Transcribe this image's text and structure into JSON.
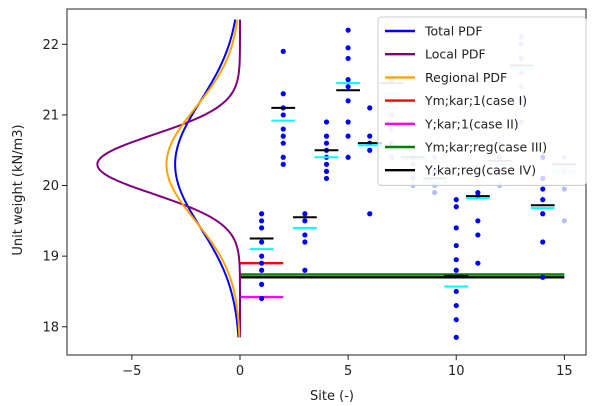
{
  "chart_data": {
    "type": "scatter",
    "xlabel": "Site (-)",
    "ylabel": "Unit weight (kN/m3)",
    "xlim": [
      -8,
      16
    ],
    "ylim": [
      17.6,
      22.5
    ],
    "xticks": [
      -5,
      0,
      5,
      10,
      15
    ],
    "yticks": [
      18,
      19,
      20,
      21,
      22
    ],
    "legend_position": "top-right",
    "colors": {
      "points": "#0000ff",
      "points_faded": "#b8bef5",
      "site_mean": "#000000",
      "site_char": "#00ffff",
      "total_pdf": "#0000ff",
      "local_pdf": "#800080",
      "regional_pdf": "#ffa500",
      "case1": "#ff0000",
      "case2": "#ff00ff",
      "case3": "#008000",
      "case4": "#000000"
    },
    "curves": [
      {
        "name": "Total PDF",
        "color": "#0000ff",
        "width": 2,
        "mean": 20.3,
        "sd": 0.9,
        "peak_x": -3.0
      },
      {
        "name": "Local PDF",
        "color": "#800080",
        "width": 2,
        "mean": 20.3,
        "sd": 0.42,
        "peak_x": -6.6
      },
      {
        "name": "Regional PDF",
        "color": "#ffa500",
        "width": 2,
        "mean": 20.3,
        "sd": 0.8,
        "peak_x": -3.4
      }
    ],
    "curve_y_range": [
      17.85,
      22.35
    ],
    "case_lines": [
      {
        "name": "Ym;kar;1(case I)",
        "color": "#ff0000",
        "y": 18.9,
        "x": [
          0,
          2
        ]
      },
      {
        "name": "Y;kar;1(case II)",
        "color": "#ff00ff",
        "y": 18.42,
        "x": [
          0,
          2
        ]
      },
      {
        "name": "Ym;kar;reg(case III)",
        "color": "#008000",
        "y": 18.74,
        "x": [
          0,
          15
        ]
      },
      {
        "name": "Y;kar;reg(case IV)",
        "color": "#000000",
        "y": 18.7,
        "x": [
          0,
          15
        ]
      }
    ],
    "sites": [
      {
        "x": 1,
        "points": [
          18.4,
          18.6,
          18.8,
          18.9,
          19.0,
          19.2,
          19.4,
          19.5,
          19.6
        ],
        "mean": 19.25,
        "char": 19.1,
        "faded": false
      },
      {
        "x": 2,
        "points": [
          20.3,
          20.4,
          20.6,
          20.7,
          20.8,
          21.0,
          21.1,
          21.3,
          21.9
        ],
        "mean": 21.1,
        "char": 20.92,
        "faded": false
      },
      {
        "x": 3,
        "points": [
          18.8,
          19.2,
          19.3,
          19.5,
          19.6
        ],
        "mean": 19.55,
        "char": 19.4,
        "faded": false
      },
      {
        "x": 4,
        "points": [
          20.1,
          20.2,
          20.3,
          20.4,
          20.5,
          20.6,
          20.7,
          20.9
        ],
        "mean": 20.5,
        "char": 20.4,
        "faded": false
      },
      {
        "x": 5,
        "points": [
          20.4,
          20.7,
          20.9,
          21.2,
          21.4,
          21.5,
          21.8,
          21.95,
          22.2
        ],
        "mean": 21.35,
        "char": 21.45,
        "faded": false
      },
      {
        "x": 6,
        "points": [
          19.6,
          20.5,
          20.6,
          20.7,
          21.1
        ],
        "mean": 20.6,
        "char": 20.57,
        "faded": false
      },
      {
        "x": 7,
        "points": [
          20.4,
          20.6,
          20.8,
          21.0,
          21.2,
          21.5
        ],
        "mean": 21.45,
        "char": 21.3,
        "faded": true
      },
      {
        "x": 8,
        "points": [
          20.0,
          20.1,
          20.3,
          20.4
        ],
        "mean": 20.4,
        "char": 20.37,
        "faded": true
      },
      {
        "x": 9,
        "points": [
          19.9,
          20.0,
          20.2,
          20.4
        ],
        "mean": 20.1,
        "char": 20.05,
        "faded": true
      },
      {
        "x": 10,
        "points": [
          17.85,
          18.1,
          18.3,
          18.5,
          18.8,
          18.95,
          19.15,
          19.4,
          19.7,
          19.8
        ],
        "mean": 18.72,
        "char": 18.57,
        "faded": false
      },
      {
        "x": 11,
        "points": [
          18.9,
          19.3,
          19.5,
          19.85,
          19.9
        ],
        "mean": 19.85,
        "char": 19.82,
        "faded": false
      },
      {
        "x": 12,
        "points": [
          20.0,
          20.2,
          20.4,
          20.6
        ],
        "mean": 20.35,
        "char": 20.3,
        "faded": true
      },
      {
        "x": 13,
        "points": [
          20.9,
          21.2,
          21.4,
          21.6,
          21.8,
          22.0,
          22.1
        ],
        "mean": 21.7,
        "char": 21.65,
        "faded": true
      },
      {
        "x": 14,
        "points": [
          18.7,
          19.2,
          19.6,
          19.8,
          19.95,
          20.1,
          20.4
        ],
        "mean": 19.72,
        "char": 19.68,
        "faded": false
      },
      {
        "x": 15,
        "points": [
          19.5,
          19.95,
          20.2,
          20.4
        ],
        "mean": 20.3,
        "char": 20.2,
        "faded": true
      }
    ],
    "legend": [
      {
        "label": "Total PDF",
        "color": "#0000ff"
      },
      {
        "label": "Local PDF",
        "color": "#800080"
      },
      {
        "label": "Regional PDF",
        "color": "#ffa500"
      },
      {
        "label": "Ym;kar;1(case I)",
        "color": "#ff0000"
      },
      {
        "label": "Y;kar;1(case II)",
        "color": "#ff00ff"
      },
      {
        "label": "Ym;kar;reg(case III)",
        "color": "#008000"
      },
      {
        "label": "Y;kar;reg(case IV)",
        "color": "#000000"
      }
    ]
  }
}
